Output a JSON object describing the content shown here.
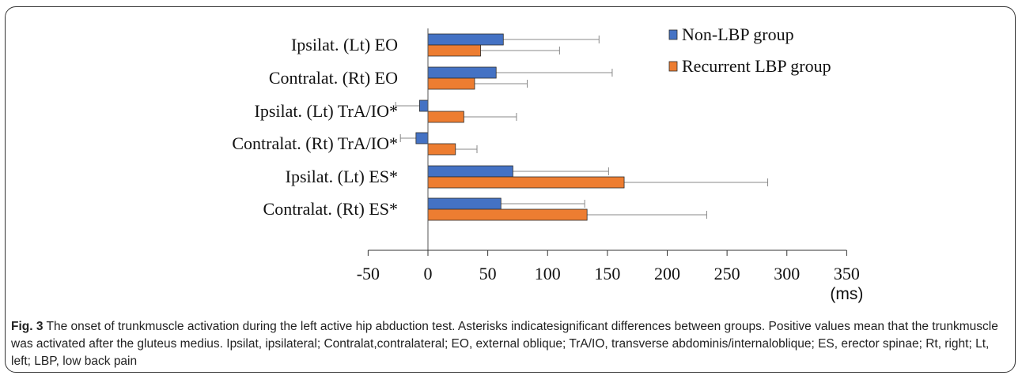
{
  "chart_data": {
    "type": "bar",
    "orientation": "horizontal",
    "categories": [
      "Ipsilat. (Lt) EO",
      "Contralat. (Rt) EO",
      "Ipsilat. (Lt) TrA/IO*",
      "Contralat. (Rt) TrA/IO*",
      "Ipsilat. (Lt) ES*",
      "Contralat. (Rt) ES*"
    ],
    "series": [
      {
        "name": "Non-LBP group",
        "color": "#4472C4",
        "values": [
          63,
          57,
          -7,
          -10,
          71,
          61
        ],
        "error": [
          80,
          97,
          20,
          13,
          80,
          70
        ]
      },
      {
        "name": "Recurrent LBP group",
        "color": "#ED7D31",
        "values": [
          44,
          39,
          30,
          23,
          164,
          133
        ],
        "error": [
          66,
          44,
          44,
          18,
          120,
          100
        ]
      }
    ],
    "xlim": [
      -50,
      350
    ],
    "xticks": [
      "-50",
      "0",
      "50",
      "100",
      "150",
      "200",
      "250",
      "300",
      "350"
    ],
    "xunit": "(ms)",
    "legend_position": "top-right",
    "grid": false
  },
  "caption": {
    "label": "Fig. 3",
    "text": " The onset of trunkmuscle activation during the left active hip abduction test. Asterisks indicatesignificant differences between groups. Positive values mean that the trunkmuscle was activated after the gluteus medius. Ipsilat, ipsilateral; Contralat,contralateral; EO, external oblique; TrA/IO, transverse abdominis/internaloblique; ES, erector spinae; Rt, right; Lt, left; LBP, low back pain"
  }
}
